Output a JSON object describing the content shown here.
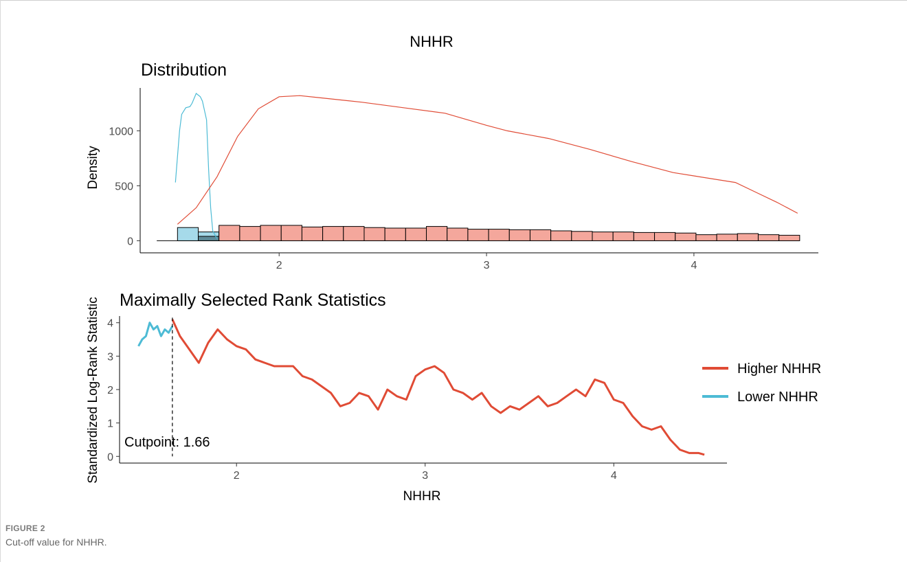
{
  "figure": {
    "main_title": "NHHR",
    "caption_label": "FIGURE 2",
    "caption_text": "Cut-off value for NHHR."
  },
  "colors": {
    "higher": "#E04B35",
    "lower": "#4DBBD5",
    "higher_fill": "#F4A79C",
    "lower_fill": "#A6DAEA",
    "overlap_fill": "#5E8A98"
  },
  "chart_data": [
    {
      "type": "histogram+density",
      "title": "Distribution",
      "ylabel": "Density",
      "xlabel": "",
      "xlim": [
        1.33,
        4.6
      ],
      "ylim": [
        -110,
        1390
      ],
      "xticks": [
        2,
        3,
        4
      ],
      "yticks": [
        0,
        500,
        1000
      ],
      "grid": false,
      "histogram": {
        "bin_edges": [
          1.51,
          1.61,
          1.71,
          1.81,
          1.91,
          2.01,
          2.11,
          2.21,
          2.31,
          2.41,
          2.51,
          2.61,
          2.71,
          2.81,
          2.91,
          3.01,
          3.11,
          3.21,
          3.31,
          3.41,
          3.51,
          3.61,
          3.71,
          3.81,
          3.91,
          4.01,
          4.11,
          4.21,
          4.31,
          4.41,
          4.51
        ],
        "lower_values": [
          120,
          80,
          0,
          0,
          0,
          0,
          0,
          0,
          0,
          0,
          0,
          0,
          0,
          0,
          0,
          0,
          0,
          0,
          0,
          0,
          0,
          0,
          0,
          0,
          0,
          0,
          0,
          0,
          0,
          0
        ],
        "higher_values": [
          0,
          40,
          140,
          130,
          140,
          140,
          125,
          130,
          130,
          120,
          115,
          115,
          130,
          115,
          105,
          105,
          100,
          100,
          90,
          85,
          80,
          80,
          75,
          75,
          70,
          55,
          60,
          65,
          55,
          50
        ]
      },
      "density": [
        {
          "name": "Lower NHHR",
          "x": [
            1.5,
            1.52,
            1.53,
            1.55,
            1.57,
            1.58,
            1.6,
            1.62,
            1.63,
            1.65,
            1.66,
            1.67,
            1.68,
            1.7
          ],
          "y": [
            530,
            1000,
            1150,
            1210,
            1220,
            1250,
            1340,
            1310,
            1270,
            1100,
            650,
            300,
            90,
            20
          ]
        },
        {
          "name": "Higher NHHR",
          "x": [
            1.51,
            1.6,
            1.7,
            1.8,
            1.9,
            2.0,
            2.1,
            2.2,
            2.4,
            2.6,
            2.8,
            3.0,
            3.1,
            3.3,
            3.5,
            3.7,
            3.9,
            4.0,
            4.2,
            4.3,
            4.4,
            4.5
          ],
          "y": [
            150,
            300,
            580,
            950,
            1200,
            1310,
            1320,
            1300,
            1260,
            1210,
            1160,
            1050,
            1000,
            930,
            830,
            720,
            620,
            590,
            530,
            440,
            350,
            250
          ]
        }
      ]
    },
    {
      "type": "line",
      "title": "Maximally Selected Rank Statistics",
      "xlabel": "NHHR",
      "ylabel": "Standardized Log-Rank Statistic",
      "xlim": [
        1.38,
        4.6
      ],
      "ylim": [
        -0.2,
        4.2
      ],
      "xticks": [
        2,
        3,
        4
      ],
      "yticks": [
        0,
        1,
        2,
        3,
        4
      ],
      "grid": false,
      "cutpoint": 1.66,
      "cutpoint_label": "Cutpoint: 1.66",
      "legend_position": "right",
      "series": [
        {
          "name": "Higher NHHR",
          "x": [
            1.66,
            1.7,
            1.75,
            1.8,
            1.85,
            1.9,
            1.95,
            2.0,
            2.05,
            2.1,
            2.15,
            2.2,
            2.3,
            2.35,
            2.4,
            2.45,
            2.5,
            2.55,
            2.6,
            2.65,
            2.7,
            2.75,
            2.8,
            2.85,
            2.9,
            2.95,
            3.0,
            3.05,
            3.1,
            3.15,
            3.2,
            3.25,
            3.3,
            3.35,
            3.4,
            3.45,
            3.5,
            3.55,
            3.6,
            3.65,
            3.7,
            3.75,
            3.8,
            3.85,
            3.9,
            3.95,
            4.0,
            4.05,
            4.1,
            4.15,
            4.2,
            4.25,
            4.3,
            4.35,
            4.4,
            4.45,
            4.48
          ],
          "y": [
            4.1,
            3.6,
            3.2,
            2.8,
            3.4,
            3.8,
            3.5,
            3.3,
            3.2,
            2.9,
            2.8,
            2.7,
            2.7,
            2.4,
            2.3,
            2.1,
            1.9,
            1.5,
            1.6,
            1.9,
            1.8,
            1.4,
            2.0,
            1.8,
            1.7,
            2.4,
            2.6,
            2.7,
            2.5,
            2.0,
            1.9,
            1.7,
            1.9,
            1.5,
            1.3,
            1.5,
            1.4,
            1.6,
            1.8,
            1.5,
            1.6,
            1.8,
            2.0,
            1.8,
            2.3,
            2.2,
            1.7,
            1.6,
            1.2,
            0.9,
            0.8,
            0.9,
            0.5,
            0.2,
            0.1,
            0.1,
            0.05
          ]
        },
        {
          "name": "Lower NHHR",
          "x": [
            1.48,
            1.5,
            1.52,
            1.54,
            1.56,
            1.58,
            1.6,
            1.62,
            1.64,
            1.66
          ],
          "y": [
            3.3,
            3.5,
            3.6,
            4.0,
            3.8,
            3.9,
            3.6,
            3.8,
            3.7,
            3.9
          ]
        }
      ]
    }
  ]
}
